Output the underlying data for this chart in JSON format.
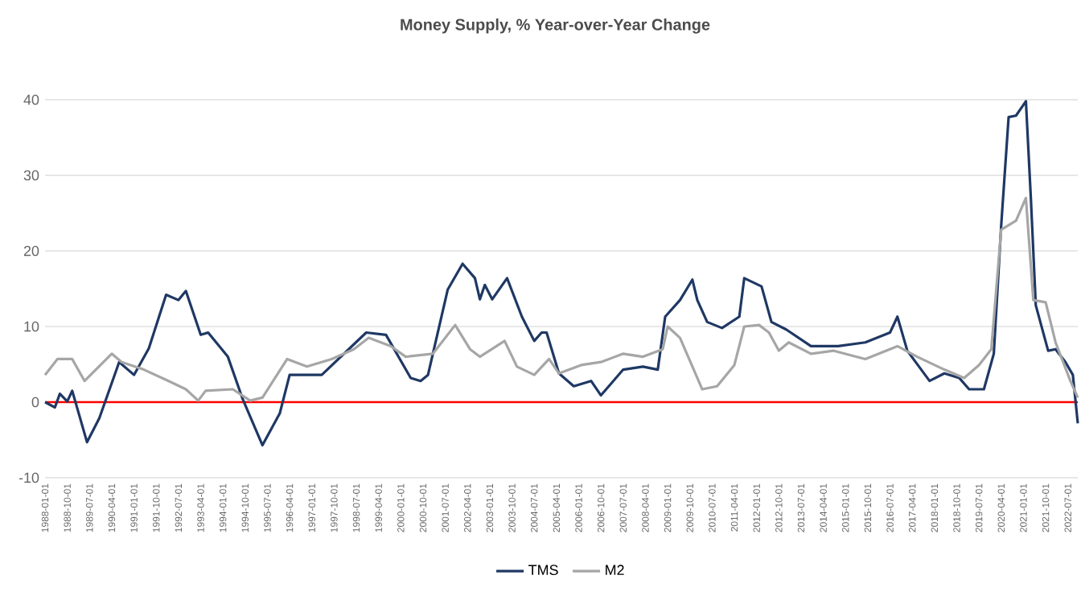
{
  "chart_data": {
    "type": "line",
    "title": "Money Supply, % Year-over-Year Change",
    "xlim": [
      "1988-01-01",
      "2022-11-01"
    ],
    "xticks": [
      "1988-01-01",
      "1988-10-01",
      "1989-07-01",
      "1990-04-01",
      "1991-01-01",
      "1991-10-01",
      "1992-07-01",
      "1993-04-01",
      "1994-01-01",
      "1994-10-01",
      "1995-07-01",
      "1996-04-01",
      "1997-01-01",
      "1997-10-01",
      "1998-07-01",
      "1999-04-01",
      "2000-01-01",
      "2000-10-01",
      "2001-07-01",
      "2002-04-01",
      "2003-01-01",
      "2003-10-01",
      "2004-07-01",
      "2005-04-01",
      "2006-01-01",
      "2006-10-01",
      "2007-07-01",
      "2008-04-01",
      "2009-01-01",
      "2009-10-01",
      "2010-07-01",
      "2011-04-01",
      "2012-01-01",
      "2012-10-01",
      "2013-07-01",
      "2014-04-01",
      "2015-01-01",
      "2015-10-01",
      "2016-07-01",
      "2017-04-01",
      "2018-01-01",
      "2018-10-01",
      "2019-07-01",
      "2020-04-01",
      "2021-01-01",
      "2021-10-01",
      "2022-07-01"
    ],
    "ylim": [
      -10,
      40
    ],
    "yticks": [
      -10,
      0,
      10,
      20,
      30,
      40
    ],
    "grid": "y",
    "legend": "bottom",
    "marker": "none",
    "line_style": "solid",
    "ref_lines": [
      {
        "axis": "y",
        "value": 0,
        "color": "#ff0000"
      }
    ],
    "series": [
      {
        "name": "TMS",
        "color": "#1f3864",
        "x": [
          "1988-01",
          "1988-05",
          "1988-07",
          "1988-10",
          "1988-12",
          "1989-06",
          "1989-11",
          "1990-07",
          "1991-01",
          "1991-07",
          "1992-02",
          "1992-07",
          "1992-10",
          "1993-04",
          "1993-07",
          "1994-03",
          "1994-09",
          "1995-05",
          "1995-12",
          "1996-04",
          "1997-05",
          "1998-11",
          "1999-07",
          "2000-05",
          "2000-09",
          "2000-12",
          "2001-08",
          "2002-02",
          "2002-07",
          "2002-09",
          "2002-11",
          "2003-02",
          "2003-08",
          "2004-02",
          "2004-07",
          "2004-10",
          "2004-12",
          "2005-05",
          "2005-11",
          "2006-06",
          "2006-10",
          "2007-07",
          "2008-03",
          "2008-09",
          "2008-12",
          "2009-06",
          "2009-11",
          "2010-01",
          "2010-05",
          "2010-11",
          "2011-06",
          "2011-08",
          "2012-03",
          "2012-07",
          "2013-01",
          "2013-11",
          "2014-10",
          "2015-09",
          "2016-07",
          "2016-10",
          "2017-02",
          "2017-11",
          "2018-05",
          "2018-11",
          "2019-03",
          "2019-09",
          "2020-01",
          "2020-04",
          "2020-07",
          "2020-10",
          "2021-02",
          "2021-04",
          "2021-06",
          "2021-11",
          "2022-02",
          "2022-06",
          "2022-09",
          "2022-11"
        ],
        "values": [
          0,
          -0.7,
          1.1,
          0.1,
          1.5,
          -5.3,
          -2.1,
          5.3,
          3.6,
          7.1,
          14.2,
          13.5,
          14.7,
          8.9,
          9.2,
          6.0,
          0.4,
          -5.7,
          -1.5,
          3.6,
          3.6,
          9.2,
          8.9,
          3.2,
          2.8,
          3.6,
          14.9,
          18.3,
          16.4,
          13.6,
          15.5,
          13.6,
          16.4,
          11.3,
          8.1,
          9.2,
          9.2,
          3.8,
          2.1,
          2.8,
          0.9,
          4.3,
          4.7,
          4.3,
          11.3,
          13.5,
          16.2,
          13.5,
          10.6,
          9.8,
          11.3,
          16.4,
          15.3,
          10.6,
          9.6,
          7.4,
          7.4,
          7.9,
          9.2,
          11.3,
          6.8,
          2.8,
          3.8,
          3.2,
          1.7,
          1.7,
          6.4,
          23.4,
          37.7,
          37.9,
          39.8,
          27,
          12.8,
          6.8,
          7.0,
          5.3,
          3.6,
          -2.8
        ]
      },
      {
        "name": "M2",
        "color": "#a6a6a6",
        "x": [
          "1988-01",
          "1988-06",
          "1988-12",
          "1989-05",
          "1990-04",
          "1990-08",
          "1991-05",
          "1992-03",
          "1992-10",
          "1993-03",
          "1993-06",
          "1994-05",
          "1994-12",
          "1995-05",
          "1996-03",
          "1996-11",
          "1997-09",
          "1998-06",
          "1998-12",
          "1999-09",
          "2000-03",
          "2001-02",
          "2001-11",
          "2002-05",
          "2002-09",
          "2003-07",
          "2003-12",
          "2004-07",
          "2005-01",
          "2005-05",
          "2006-02",
          "2006-10",
          "2007-07",
          "2008-03",
          "2008-11",
          "2009-01",
          "2009-06",
          "2010-03",
          "2010-09",
          "2011-04",
          "2011-08",
          "2012-02",
          "2012-06",
          "2012-10",
          "2013-02",
          "2013-11",
          "2014-08",
          "2015-09",
          "2016-10",
          "2017-06",
          "2018-05",
          "2019-01",
          "2019-07",
          "2019-12",
          "2020-04",
          "2020-10",
          "2021-02",
          "2021-05",
          "2021-10",
          "2022-02",
          "2022-08",
          "2022-11"
        ],
        "values": [
          3.6,
          5.7,
          5.7,
          2.8,
          6.4,
          5.3,
          4.3,
          2.8,
          1.7,
          0.2,
          1.5,
          1.7,
          0.2,
          0.6,
          5.7,
          4.7,
          5.7,
          7.0,
          8.5,
          7.4,
          6.0,
          6.4,
          10.2,
          7.0,
          6.0,
          8.1,
          4.7,
          3.6,
          5.7,
          3.8,
          4.9,
          5.3,
          6.4,
          6.0,
          7.0,
          10,
          8.5,
          1.7,
          2.1,
          4.9,
          10,
          10.2,
          9.2,
          6.8,
          7.9,
          6.4,
          6.8,
          5.7,
          7.4,
          6.0,
          4.3,
          3.2,
          4.9,
          7.0,
          22.8,
          24,
          27,
          13.5,
          13.2,
          7.9,
          2.8,
          0.6
        ]
      }
    ]
  }
}
